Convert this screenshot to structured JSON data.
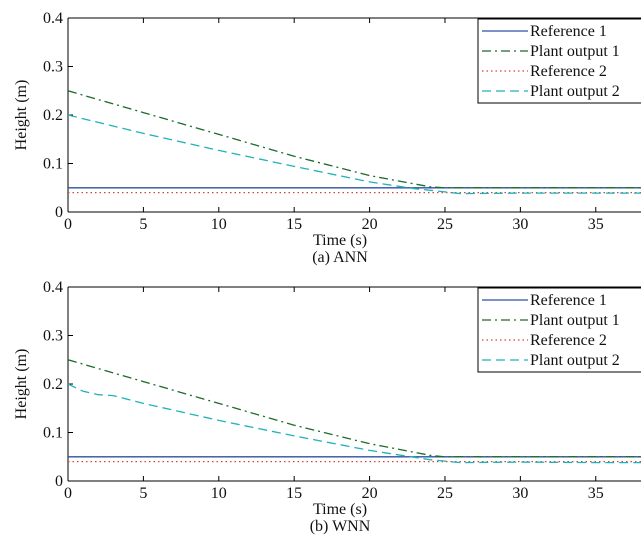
{
  "figure": {
    "captions": [
      "(a) ANN",
      "(b) WNN"
    ]
  },
  "chart_data": [
    {
      "type": "line",
      "caption": "(a) ANN",
      "xlabel": "Time (s)",
      "ylabel": "Height (m)",
      "xlim": [
        0,
        38
      ],
      "ylim": [
        0,
        0.4
      ],
      "xticks": [
        0,
        5,
        10,
        15,
        20,
        25,
        30,
        35
      ],
      "yticks": [
        0,
        0.1,
        0.2,
        0.3,
        0.4
      ],
      "ytick_labels": [
        "0",
        "0.1",
        "0.2",
        "0.3",
        "0.4"
      ],
      "grid": false,
      "legend_position": "top-right",
      "series": [
        {
          "name": "Reference 1",
          "style": "solid",
          "color": "#2e4fa3",
          "x": [
            0,
            38
          ],
          "y": [
            0.05,
            0.05
          ]
        },
        {
          "name": "Plant output 1",
          "style": "dashdot",
          "color": "#1d6b2a",
          "x": [
            0,
            5,
            10,
            15,
            20,
            24,
            25,
            30,
            35,
            38
          ],
          "y": [
            0.25,
            0.205,
            0.16,
            0.115,
            0.075,
            0.052,
            0.05,
            0.05,
            0.05,
            0.05
          ]
        },
        {
          "name": "Reference 2",
          "style": "dotted",
          "color": "#d2453a",
          "x": [
            0,
            38
          ],
          "y": [
            0.04,
            0.04
          ]
        },
        {
          "name": "Plant output 2",
          "style": "dashed",
          "color": "#20b2b8",
          "x": [
            0,
            5,
            10,
            15,
            20,
            23,
            24,
            26,
            30,
            35,
            38
          ],
          "y": [
            0.2,
            0.162,
            0.127,
            0.094,
            0.062,
            0.048,
            0.045,
            0.038,
            0.039,
            0.039,
            0.039
          ]
        }
      ]
    },
    {
      "type": "line",
      "caption": "(b) WNN",
      "xlabel": "Time (s)",
      "ylabel": "Height (m)",
      "xlim": [
        0,
        38
      ],
      "ylim": [
        0,
        0.4
      ],
      "xticks": [
        0,
        5,
        10,
        15,
        20,
        25,
        30,
        35
      ],
      "yticks": [
        0,
        0.1,
        0.2,
        0.3,
        0.4
      ],
      "ytick_labels": [
        "0",
        "0.1",
        "0.2",
        "0.3",
        "0.4"
      ],
      "grid": false,
      "legend_position": "top-right",
      "series": [
        {
          "name": "Reference 1",
          "style": "solid",
          "color": "#2e4fa3",
          "x": [
            0,
            38
          ],
          "y": [
            0.05,
            0.05
          ]
        },
        {
          "name": "Plant output 1",
          "style": "dashdot",
          "color": "#1d6b2a",
          "x": [
            0,
            5,
            10,
            15,
            20,
            24,
            25,
            30,
            35,
            38
          ],
          "y": [
            0.25,
            0.205,
            0.16,
            0.115,
            0.077,
            0.053,
            0.05,
            0.05,
            0.05,
            0.05
          ]
        },
        {
          "name": "Reference 2",
          "style": "dotted",
          "color": "#d2453a",
          "x": [
            0,
            38
          ],
          "y": [
            0.04,
            0.04
          ]
        },
        {
          "name": "Plant output 2",
          "style": "dashed",
          "color": "#20b2b8",
          "x": [
            0,
            1,
            2,
            3,
            5,
            10,
            15,
            20,
            24,
            26,
            30,
            35,
            38
          ],
          "y": [
            0.2,
            0.185,
            0.178,
            0.176,
            0.16,
            0.125,
            0.093,
            0.063,
            0.044,
            0.038,
            0.039,
            0.038,
            0.038
          ]
        }
      ]
    }
  ]
}
